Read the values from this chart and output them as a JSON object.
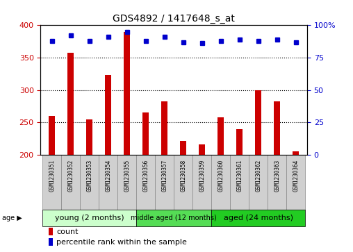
{
  "title": "GDS4892 / 1417648_s_at",
  "samples": [
    "GSM1230351",
    "GSM1230352",
    "GSM1230353",
    "GSM1230354",
    "GSM1230355",
    "GSM1230356",
    "GSM1230357",
    "GSM1230358",
    "GSM1230359",
    "GSM1230360",
    "GSM1230361",
    "GSM1230362",
    "GSM1230363",
    "GSM1230364"
  ],
  "counts": [
    260,
    357,
    255,
    323,
    390,
    265,
    283,
    222,
    216,
    258,
    240,
    300,
    283,
    205
  ],
  "percentile_ranks": [
    88,
    92,
    88,
    91,
    95,
    88,
    91,
    87,
    86,
    88,
    89,
    88,
    89,
    87
  ],
  "ylim_left": [
    200,
    400
  ],
  "yticks_left": [
    200,
    250,
    300,
    350,
    400
  ],
  "ylim_right": [
    0,
    100
  ],
  "yticks_right": [
    0,
    25,
    50,
    75,
    100
  ],
  "bar_color": "#cc0000",
  "dot_color": "#0000cc",
  "bar_width": 0.35,
  "groups": [
    {
      "label": "young (2 months)",
      "start": 0,
      "end": 5,
      "color": "#ccffcc",
      "fontsize": 8
    },
    {
      "label": "middle aged (12 months)",
      "start": 5,
      "end": 9,
      "color": "#55dd55",
      "fontsize": 7
    },
    {
      "label": "aged (24 months)",
      "start": 9,
      "end": 14,
      "color": "#22cc22",
      "fontsize": 8
    }
  ],
  "legend_count_color": "#cc0000",
  "legend_dot_color": "#0000cc",
  "grid_color": "#000000",
  "left_tick_color": "#cc0000",
  "right_tick_color": "#0000cc",
  "background_color": "#ffffff",
  "sample_bg_color": "#d0d0d0",
  "sample_border_color": "#888888",
  "age_label": "age",
  "legend_count_label": "count",
  "legend_pct_label": "percentile rank within the sample"
}
